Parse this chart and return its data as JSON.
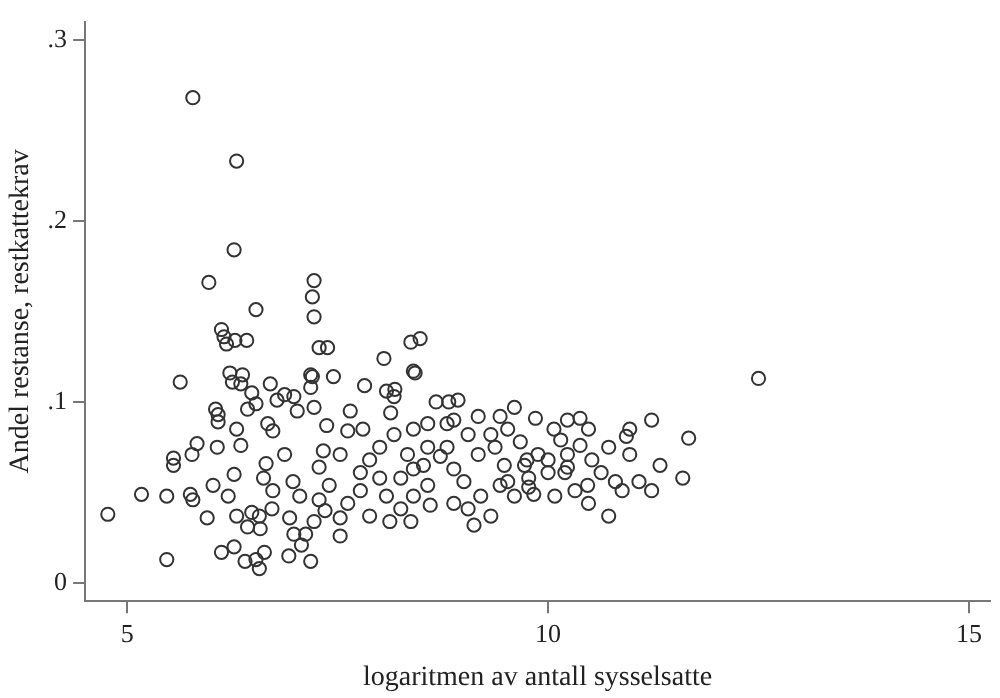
{
  "chart_data": {
    "type": "scatter",
    "xlabel": "logaritmen av antall sysselsatte",
    "ylabel": "Andel restanse, restkattekrav",
    "xlim": [
      4.5,
      15.25
    ],
    "xticks": [
      5,
      10,
      15
    ],
    "ylim": [
      -0.01,
      0.31
    ],
    "yticks": [
      {
        "value": 0,
        "label": "0"
      },
      {
        "value": 0.1,
        "label": ".1"
      },
      {
        "value": 0.2,
        "label": ".2"
      },
      {
        "value": 0.3,
        "label": ".3"
      }
    ],
    "grid": false,
    "legend": false,
    "marker": "circle",
    "series": [
      {
        "color": "#333333",
        "x": [
          5.78,
          6.3,
          6.27,
          5.97,
          7.22,
          7.2,
          7.22,
          6.53,
          6.12,
          6.15,
          6.28,
          6.42,
          6.18,
          7.28,
          7.38,
          8.37,
          8.48,
          8.05,
          8.4,
          8.42,
          5.63,
          6.22,
          6.37,
          6.25,
          6.35,
          6.7,
          7.18,
          7.2,
          7.45,
          7.18,
          7.82,
          8.08,
          8.18,
          8.17,
          12.5,
          6.48,
          6.53,
          6.43,
          6.87,
          6.98,
          6.78,
          6.05,
          6.08,
          6.08,
          6.3,
          6.67,
          6.73,
          7.02,
          7.22,
          7.65,
          8.13,
          8.67,
          8.82,
          8.93,
          9.6,
          9.85,
          10.38,
          11.23,
          10.23,
          10.07,
          10.15,
          10.93,
          11.67,
          10.38,
          10.2,
          10.47,
          10.88,
          5.83,
          5.77,
          5.55,
          5.55,
          5.17,
          5.47,
          5.75,
          5.78,
          5.95,
          4.77,
          5.47,
          6.12,
          6.27,
          6.4,
          6.57,
          6.63,
          6.53,
          6.92,
          7.18,
          6.02,
          6.07,
          6.2,
          6.3,
          6.27,
          6.35,
          6.43,
          6.48,
          6.57,
          6.58,
          6.72,
          6.73,
          6.62,
          6.65,
          6.87,
          6.97,
          7.05,
          6.93,
          6.98,
          7.12,
          7.07,
          7.22,
          7.35,
          7.28,
          7.4,
          7.28,
          7.33,
          7.53,
          7.37,
          7.62,
          7.8,
          7.53,
          7.53,
          7.62,
          7.77,
          7.77,
          7.88,
          8.0,
          8.0,
          8.08,
          7.88,
          8.12,
          8.25,
          8.4,
          8.25,
          8.4,
          8.33,
          8.17,
          8.4,
          8.57,
          8.52,
          8.57,
          8.37,
          8.6,
          8.72,
          8.8,
          8.88,
          9.0,
          8.88,
          9.05,
          9.12,
          9.17,
          9.37,
          9.48,
          9.43,
          9.2,
          9.32,
          9.6,
          9.77,
          9.75,
          9.88,
          10.0,
          9.83,
          10.08,
          10.23,
          10.32,
          10.48,
          10.52,
          10.63,
          10.72,
          10.72,
          10.8,
          10.97,
          9.52,
          9.72,
          9.52,
          9.77,
          10.0,
          10.23,
          11.08,
          11.6,
          9.32,
          9.05,
          8.8,
          8.57,
          8.88,
          9.17,
          9.43,
          9.67,
          10.48,
          10.97,
          11.23,
          11.33
        ],
        "values": [
          0.268,
          0.233,
          0.184,
          0.166,
          0.167,
          0.158,
          0.147,
          0.151,
          0.14,
          0.136,
          0.134,
          0.134,
          0.132,
          0.13,
          0.13,
          0.133,
          0.135,
          0.124,
          0.117,
          0.116,
          0.111,
          0.116,
          0.115,
          0.111,
          0.11,
          0.11,
          0.115,
          0.114,
          0.114,
          0.108,
          0.109,
          0.106,
          0.107,
          0.103,
          0.113,
          0.105,
          0.099,
          0.096,
          0.104,
          0.103,
          0.101,
          0.096,
          0.093,
          0.089,
          0.085,
          0.088,
          0.084,
          0.095,
          0.097,
          0.095,
          0.094,
          0.1,
          0.1,
          0.101,
          0.097,
          0.091,
          0.091,
          0.09,
          0.09,
          0.085,
          0.079,
          0.081,
          0.08,
          0.076,
          0.061,
          0.054,
          0.051,
          0.077,
          0.071,
          0.069,
          0.065,
          0.049,
          0.048,
          0.049,
          0.046,
          0.036,
          0.038,
          0.013,
          0.017,
          0.02,
          0.012,
          0.008,
          0.017,
          0.013,
          0.015,
          0.012,
          0.054,
          0.075,
          0.048,
          0.037,
          0.06,
          0.076,
          0.031,
          0.039,
          0.037,
          0.03,
          0.041,
          0.051,
          0.058,
          0.066,
          0.071,
          0.056,
          0.048,
          0.036,
          0.027,
          0.027,
          0.021,
          0.034,
          0.04,
          0.046,
          0.054,
          0.064,
          0.073,
          0.071,
          0.087,
          0.084,
          0.085,
          0.026,
          0.036,
          0.044,
          0.051,
          0.061,
          0.068,
          0.075,
          0.058,
          0.048,
          0.037,
          0.034,
          0.041,
          0.048,
          0.058,
          0.063,
          0.071,
          0.082,
          0.085,
          0.075,
          0.065,
          0.054,
          0.034,
          0.043,
          0.07,
          0.075,
          0.063,
          0.056,
          0.044,
          0.041,
          0.032,
          0.071,
          0.075,
          0.065,
          0.054,
          0.048,
          0.037,
          0.048,
          0.058,
          0.068,
          0.071,
          0.061,
          0.049,
          0.048,
          0.071,
          0.051,
          0.044,
          0.068,
          0.061,
          0.075,
          0.037,
          0.056,
          0.071,
          0.085,
          0.065,
          0.056,
          0.053,
          0.068,
          0.064,
          0.056,
          0.058,
          0.082,
          0.082,
          0.088,
          0.088,
          0.09,
          0.092,
          0.092,
          0.078,
          0.085,
          0.085,
          0.051,
          0.065
        ]
      }
    ]
  }
}
